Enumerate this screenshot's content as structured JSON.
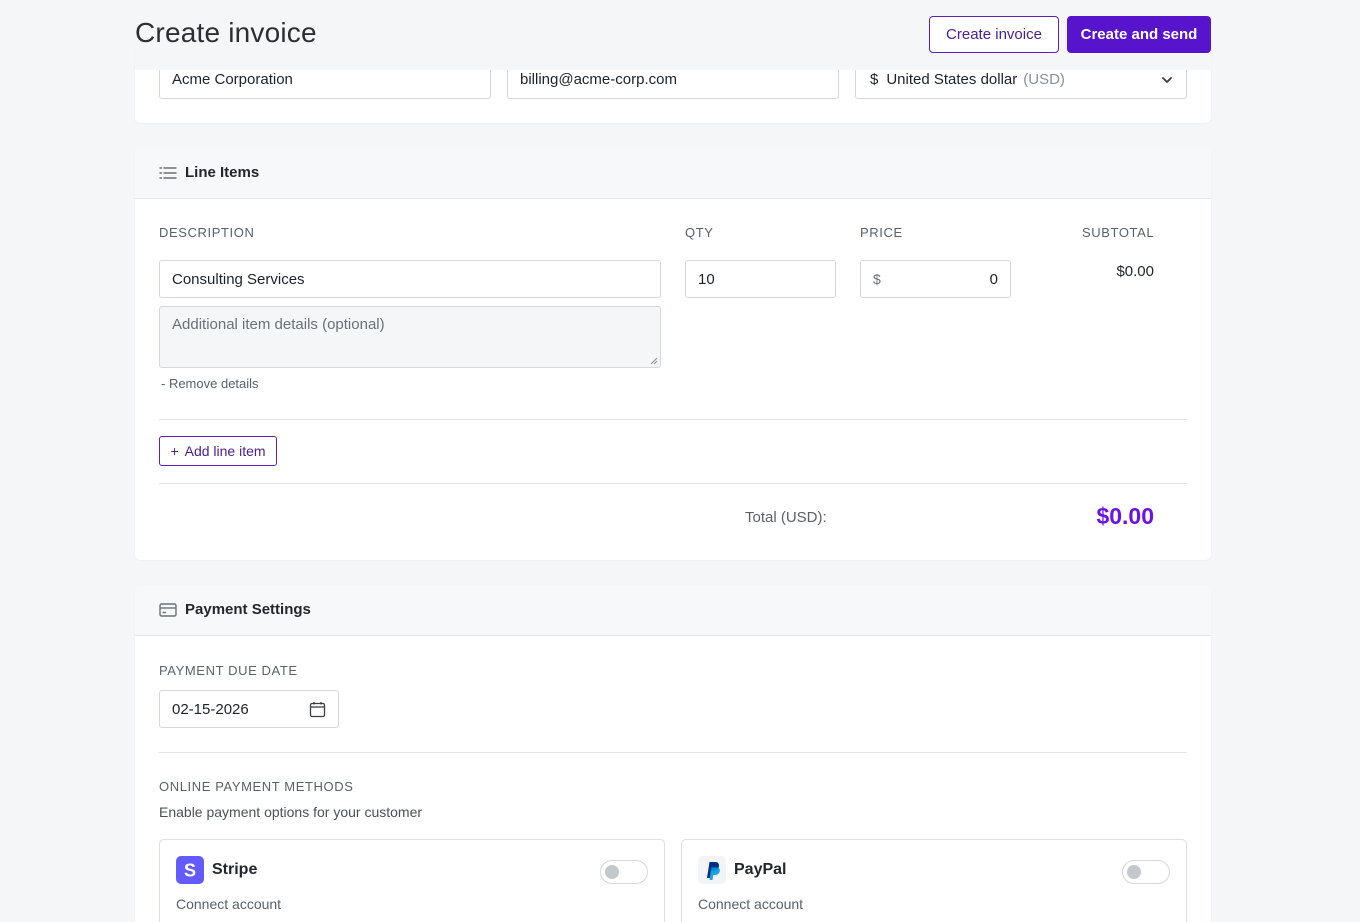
{
  "header": {
    "title": "Create invoice",
    "create_button": "Create invoice",
    "create_send_button": "Create and send"
  },
  "client": {
    "name": "Acme Corporation",
    "email": "billing@acme-corp.com",
    "currency_symbol": "$",
    "currency_name": "United States dollar",
    "currency_code": "(USD)"
  },
  "line_items": {
    "section_title": "Line Items",
    "columns": {
      "description": "DESCRIPTION",
      "qty": "QTY",
      "price": "PRICE",
      "subtotal": "SUBTOTAL"
    },
    "items": [
      {
        "description": "Consulting Services",
        "qty": "10",
        "price_symbol": "$",
        "price": "0",
        "subtotal": "$0.00",
        "details_placeholder": "Additional item details (optional)",
        "remove_details": "- Remove details"
      }
    ],
    "add_line_item": "Add line item",
    "add_icon": "+",
    "total_label": "Total (USD):",
    "total_value": "$0.00"
  },
  "payment": {
    "section_title": "Payment Settings",
    "due_date_label": "PAYMENT DUE DATE",
    "due_date": "02-15-2026",
    "methods_label": "ONLINE PAYMENT METHODS",
    "methods_sub": "Enable payment options for your customer",
    "methods": [
      {
        "name": "Stripe",
        "sub": "Connect account",
        "logo_letter": "S",
        "enabled": false
      },
      {
        "name": "PayPal",
        "sub": "Connect account",
        "enabled": false
      }
    ]
  },
  "colors": {
    "accent": "#5714cc",
    "total": "#6d12e6",
    "stripe": "#635bff",
    "paypal_dark": "#003087",
    "paypal_light": "#009cde"
  },
  "icons": {
    "list": "list-icon",
    "card": "credit-card-icon",
    "chevron": "chevron-down-icon",
    "calendar": "calendar-icon"
  }
}
